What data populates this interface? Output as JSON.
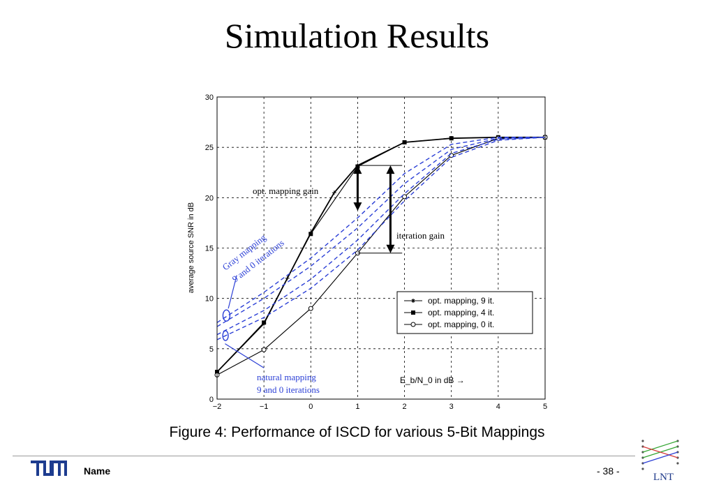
{
  "slide": {
    "title": "Simulation Results",
    "caption": "Figure 4: Performance of ISCD for various 5-Bit Mappings",
    "footer_name": "Name",
    "page_number": "- 38 -",
    "footer_logo_text": "LNT"
  },
  "chart_data": {
    "type": "line",
    "title": "",
    "xlabel": "E_b/N_0 in dB →",
    "ylabel": "average source SNR in dB",
    "xlim": [
      -2,
      5
    ],
    "ylim": [
      0,
      30
    ],
    "xticks": [
      -2,
      -1,
      0,
      1,
      2,
      3,
      4,
      5
    ],
    "yticks": [
      0,
      5,
      10,
      15,
      20,
      25,
      30
    ],
    "grid": true,
    "legend": "bottom-right",
    "series": [
      {
        "name": "opt. mapping, 9 it.",
        "marker": "asterisk",
        "color": "#000000",
        "x": [
          -2,
          -1,
          -0.5,
          0,
          0.5,
          1,
          2,
          3,
          4,
          5
        ],
        "y": [
          2.7,
          7.5,
          12,
          16.5,
          20.5,
          23.2,
          25.5,
          25.9,
          26.0,
          26.0
        ]
      },
      {
        "name": "opt. mapping, 4 it.",
        "marker": "square",
        "color": "#000000",
        "x": [
          -2,
          -1,
          0,
          1,
          2,
          3,
          4,
          5
        ],
        "y": [
          2.7,
          7.6,
          16.4,
          23.1,
          25.5,
          25.9,
          26.0,
          26.0
        ]
      },
      {
        "name": "opt. mapping, 0 it.",
        "marker": "circle",
        "color": "#000000",
        "x": [
          -2,
          -1,
          0,
          1,
          2,
          3,
          4,
          5
        ],
        "y": [
          2.4,
          4.9,
          9.0,
          14.5,
          20.1,
          24.2,
          25.9,
          26.0
        ]
      },
      {
        "name": "",
        "style": "dashed",
        "color": "#2b3fd6",
        "x": [
          -2,
          -1,
          0,
          1,
          2,
          3,
          4,
          5
        ],
        "y": [
          7.6,
          10.6,
          14.0,
          18.0,
          22.4,
          25.3,
          26.0,
          26.0
        ]
      },
      {
        "name": "",
        "style": "dashed",
        "color": "#2b3fd6",
        "x": [
          -2,
          -1,
          0,
          1,
          2,
          3,
          4,
          5
        ],
        "y": [
          7.2,
          10.0,
          13.2,
          17.0,
          21.4,
          24.8,
          25.9,
          26.0
        ]
      },
      {
        "name": "",
        "style": "dashed",
        "color": "#2b3fd6",
        "x": [
          -2,
          -1,
          0,
          1,
          2,
          3,
          4,
          5
        ],
        "y": [
          6.4,
          8.8,
          11.9,
          15.8,
          20.4,
          24.4,
          25.8,
          26.0
        ]
      },
      {
        "name": "",
        "style": "dashed",
        "color": "#2b3fd6",
        "x": [
          -2,
          -1,
          0,
          1,
          2,
          3,
          4,
          5
        ],
        "y": [
          5.9,
          8.1,
          11.0,
          14.8,
          19.7,
          24.0,
          25.7,
          26.0
        ]
      }
    ],
    "annotations": [
      {
        "text": "opt. mapping gain",
        "color": "#000000"
      },
      {
        "text": "iteration gain",
        "color": "#000000"
      },
      {
        "text": "Gray mapping",
        "color": "#2b3fd6"
      },
      {
        "text": "9 and 0 iterations",
        "color": "#2b3fd6"
      },
      {
        "text": "natural mapping",
        "color": "#2b3fd6"
      },
      {
        "text": "9 and 0 iterations",
        "color": "#2b3fd6"
      }
    ],
    "arrows": [
      {
        "label": "opt. mapping gain",
        "x": 1.0,
        "y_top": 23.2,
        "y_bottom": 18.7
      },
      {
        "label": "iteration gain",
        "x": 1.7,
        "y_top": 23.2,
        "y_bottom": 14.5
      }
    ]
  }
}
